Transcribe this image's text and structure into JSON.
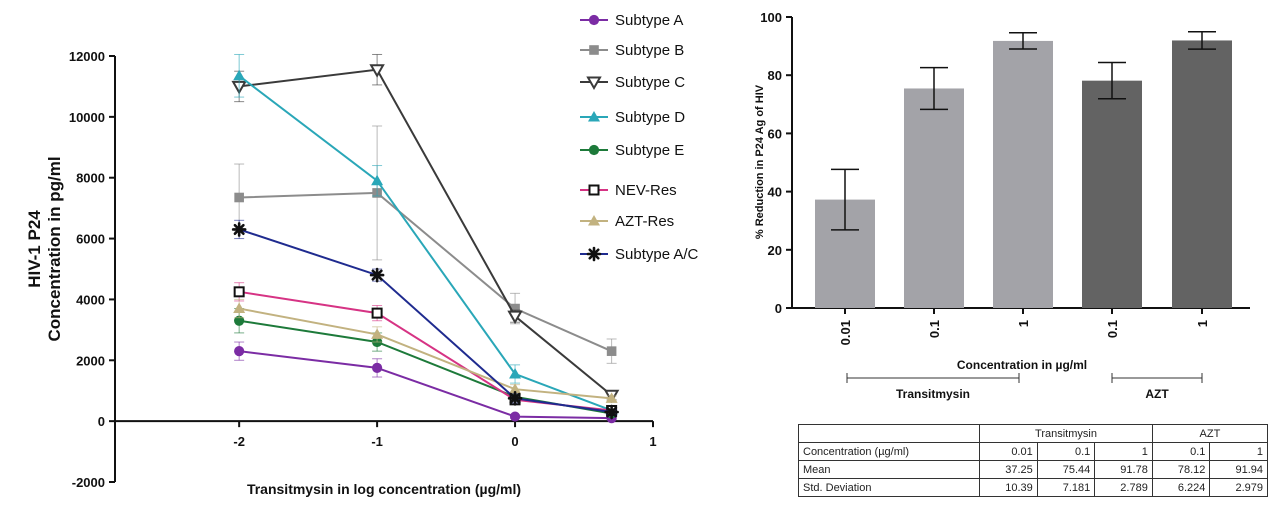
{
  "chart_data": [
    {
      "type": "line",
      "ylabel": [
        "HIV-1 P24",
        "Concentration in pg/ml"
      ],
      "xlabel": "Transitmysin in log concentration (µg/ml)",
      "x_ticks": [
        -2,
        -1,
        0,
        1
      ],
      "y_ticks": [
        -2000,
        0,
        2000,
        4000,
        6000,
        8000,
        10000,
        12000
      ],
      "xlim": [
        -2.9,
        1
      ],
      "ylim": [
        -2000,
        12000
      ],
      "legend_position": "top-right, outside plot",
      "x": [
        -2,
        -1,
        0,
        0.7
      ],
      "series": [
        {
          "name": "Subtype A",
          "color": "#7b2ca4",
          "marker": "circle",
          "values": [
            2300,
            1750,
            150,
            100
          ],
          "error": [
            300,
            300,
            50,
            50
          ]
        },
        {
          "name": "Subtype B",
          "color": "#8c8c8c",
          "marker": "square",
          "values": [
            7350,
            7500,
            3700,
            2300
          ],
          "error": [
            1100,
            2200,
            500,
            400
          ]
        },
        {
          "name": "Subtype C",
          "color": "#3a3a3a",
          "marker": "triangle-down-open",
          "values": [
            11000,
            11550,
            3450,
            850
          ],
          "error": [
            500,
            500,
            200,
            150
          ]
        },
        {
          "name": "Subtype D",
          "color": "#2aa7b8",
          "marker": "triangle-up",
          "values": [
            11350,
            7900,
            1550,
            350
          ],
          "error": [
            700,
            500,
            300,
            100
          ]
        },
        {
          "name": "Subtype E",
          "color": "#1d7a3a",
          "marker": "circle",
          "values": [
            3300,
            2600,
            800,
            250
          ],
          "error": [
            400,
            300,
            150,
            50
          ]
        },
        {
          "name": "NEV-Res",
          "color": "#d63384",
          "marker": "square-open",
          "values": [
            4250,
            3550,
            700,
            350
          ],
          "error": [
            300,
            250,
            150,
            80
          ]
        },
        {
          "name": "AZT-Res",
          "color": "#c2b280",
          "marker": "triangle-up",
          "values": [
            3700,
            2850,
            1050,
            750
          ],
          "error": [
            300,
            250,
            150,
            80
          ]
        },
        {
          "name": "Subtype A/C",
          "color": "#1f2b8f",
          "marker": "asterisk",
          "values": [
            6300,
            4800,
            750,
            300
          ],
          "error": [
            300,
            200,
            150,
            80
          ]
        }
      ]
    },
    {
      "type": "bar",
      "ylabel": "% Reduction in P24 Ag of HIV",
      "xlabel": "Concentration in µg/ml",
      "categories": [
        "0.01",
        "0.1",
        "1",
        "0.1",
        "1"
      ],
      "groups": [
        {
          "label": "Transitmysin",
          "start": 0,
          "end": 2
        },
        {
          "label": "AZT",
          "start": 3,
          "end": 4
        }
      ],
      "values": [
        37.25,
        75.44,
        91.78,
        78.12,
        91.94
      ],
      "errors": [
        10.39,
        7.181,
        2.789,
        6.224,
        2.979
      ],
      "colors": [
        "#a3a3a8",
        "#a3a3a8",
        "#a3a3a8",
        "#636363",
        "#636363"
      ],
      "y_ticks": [
        0,
        20,
        40,
        60,
        80,
        100
      ],
      "ylim": [
        0,
        100
      ]
    },
    {
      "type": "table",
      "group_headers": [
        "Transitmysin",
        "AZT"
      ],
      "rows": [
        {
          "label": "Concentration (µg/ml)",
          "cells": [
            "0.01",
            "0.1",
            "1",
            "0.1",
            "1"
          ]
        },
        {
          "label": "Mean",
          "cells": [
            "37.25",
            "75.44",
            "91.78",
            "78.12",
            "91.94"
          ]
        },
        {
          "label": "Std. Deviation",
          "cells": [
            "10.39",
            "7.181",
            "2.789",
            "6.224",
            "2.979"
          ]
        }
      ]
    }
  ]
}
